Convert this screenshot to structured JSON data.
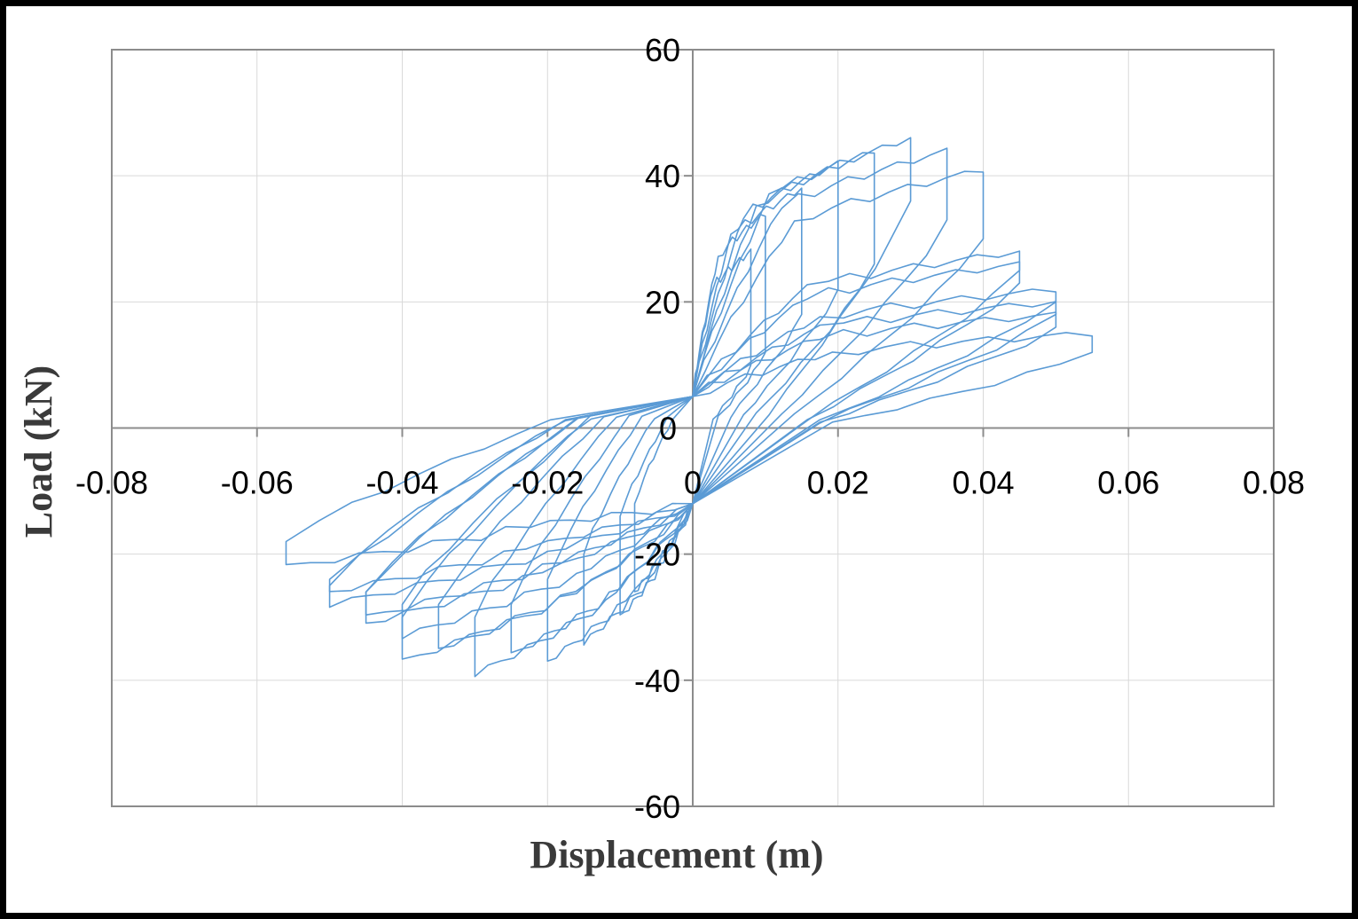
{
  "chart_data": {
    "type": "line",
    "title": "",
    "xlabel": "Displacement  (m)",
    "ylabel": "Load (kN)",
    "xlim": [
      -0.08,
      0.08
    ],
    "ylim": [
      -60,
      60
    ],
    "x_ticks": [
      -0.08,
      -0.06,
      -0.04,
      -0.02,
      0,
      0.02,
      0.04,
      0.06,
      0.08
    ],
    "x_tick_labels": [
      "-0.08",
      "-0.06",
      "-0.04",
      "-0.02",
      "0",
      "0.02",
      "0.04",
      "0.06",
      "0.08"
    ],
    "y_ticks": [
      -60,
      -40,
      -20,
      0,
      20,
      40,
      60
    ],
    "y_tick_labels": [
      "-60",
      "-40",
      "-20",
      "0",
      "20",
      "40",
      "60"
    ],
    "grid": true,
    "legend": "none",
    "color": "#5b9bd5",
    "loops": [
      {
        "peak_pos": [
          0.008,
          28
        ],
        "peak_neg": [
          -0.008,
          -26
        ],
        "unload_pos": 10,
        "unload_neg": -12
      },
      {
        "peak_pos": [
          0.01,
          34
        ],
        "peak_neg": [
          -0.01,
          -30
        ],
        "unload_pos": 12,
        "unload_neg": -14
      },
      {
        "peak_pos": [
          0.015,
          38
        ],
        "peak_neg": [
          -0.015,
          -34
        ],
        "unload_pos": 18,
        "unload_neg": -20
      },
      {
        "peak_pos": [
          0.02,
          42
        ],
        "peak_neg": [
          -0.02,
          -37
        ],
        "unload_pos": 22,
        "unload_neg": -24
      },
      {
        "peak_pos": [
          0.025,
          44
        ],
        "peak_neg": [
          -0.025,
          -36
        ],
        "unload_pos": 26,
        "unload_neg": -28
      },
      {
        "peak_pos": [
          0.03,
          46
        ],
        "peak_neg": [
          -0.03,
          -39
        ],
        "unload_pos": 36,
        "unload_neg": -30
      },
      {
        "peak_pos": [
          0.035,
          44
        ],
        "peak_neg": [
          -0.035,
          -35
        ],
        "unload_pos": 33,
        "unload_neg": -28
      },
      {
        "peak_pos": [
          0.04,
          41
        ],
        "peak_neg": [
          -0.04,
          -37
        ],
        "unload_pos": 30,
        "unload_neg": -30
      },
      {
        "peak_pos": [
          0.045,
          28
        ],
        "peak_neg": [
          -0.04,
          -33
        ],
        "unload_pos": 25,
        "unload_neg": -28
      },
      {
        "peak_pos": [
          0.045,
          26
        ],
        "peak_neg": [
          -0.045,
          -31
        ],
        "unload_pos": 23,
        "unload_neg": -26
      },
      {
        "peak_pos": [
          0.05,
          22
        ],
        "peak_neg": [
          -0.045,
          -30
        ],
        "unload_pos": 20,
        "unload_neg": -26
      },
      {
        "peak_pos": [
          0.05,
          20
        ],
        "peak_neg": [
          -0.05,
          -28
        ],
        "unload_pos": 18,
        "unload_neg": -25
      },
      {
        "peak_pos": [
          0.05,
          18
        ],
        "peak_neg": [
          -0.05,
          -26
        ],
        "unload_pos": 16,
        "unload_neg": -24
      },
      {
        "peak_pos": [
          0.055,
          15
        ],
        "peak_neg": [
          -0.056,
          -22
        ],
        "unload_pos": 12,
        "unload_neg": -18
      }
    ]
  }
}
